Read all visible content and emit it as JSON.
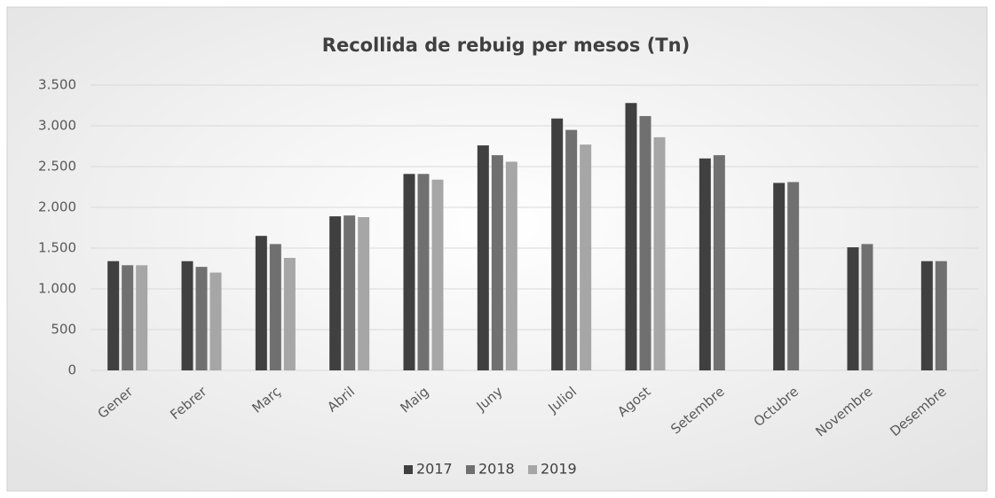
{
  "chart_data": {
    "type": "bar",
    "title": "Recollida de rebuig per mesos (Tn)",
    "categories": [
      "Gener",
      "Febrer",
      "Març",
      "Abril",
      "Maig",
      "Juny",
      "Juliol",
      "Agost",
      "Setembre",
      "Octubre",
      "Novembre",
      "Desembre"
    ],
    "series": [
      {
        "name": "2017",
        "color": "#404040",
        "values": [
          1340,
          1340,
          1650,
          1890,
          2410,
          2760,
          3090,
          3280,
          2600,
          2300,
          1510,
          1340
        ]
      },
      {
        "name": "2018",
        "color": "#707070",
        "values": [
          1290,
          1270,
          1550,
          1900,
          2410,
          2640,
          2950,
          3120,
          2640,
          2310,
          1550,
          1340
        ]
      },
      {
        "name": "2019",
        "color": "#a6a6a6",
        "values": [
          1290,
          1200,
          1380,
          1880,
          2340,
          2560,
          2770,
          2860,
          null,
          null,
          null,
          null
        ]
      }
    ],
    "ylim": [
      0,
      3500
    ],
    "yticks": [
      0,
      500,
      {
        "value": 1000,
        "label": "1.000"
      },
      {
        "value": 1500,
        "label": "1.500"
      },
      {
        "value": 2000,
        "label": "2.000"
      },
      {
        "value": 2500,
        "label": "2.500"
      },
      {
        "value": 3000,
        "label": "3.000"
      },
      {
        "value": 3500,
        "label": "3.500"
      }
    ],
    "grid": true,
    "legend": "bottom"
  }
}
